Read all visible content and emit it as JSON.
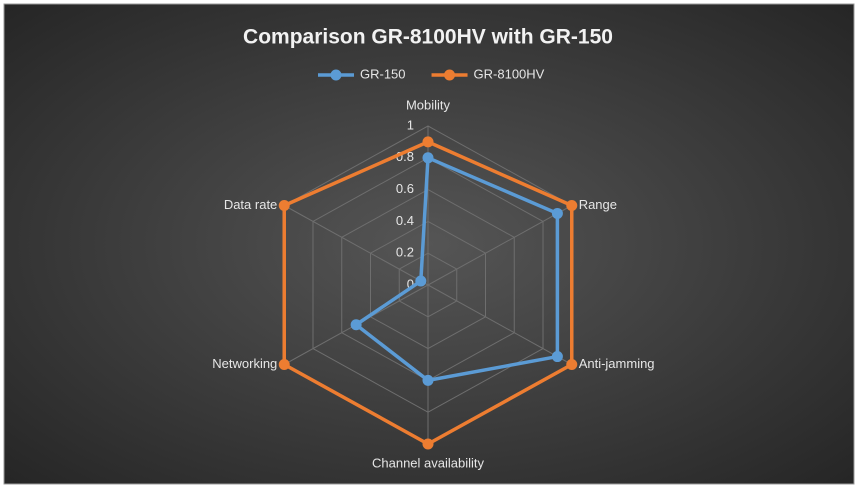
{
  "chart_data": {
    "type": "radar",
    "title": "Comparison GR-8100HV with GR-150",
    "categories": [
      "Mobility",
      "Range",
      "Anti-jamming",
      "Channel availability",
      "Networking",
      "Data rate"
    ],
    "series": [
      {
        "name": "GR-150",
        "color": "#5b9bd5",
        "values": [
          0.8,
          0.9,
          0.9,
          0.6,
          0.5,
          0.05
        ]
      },
      {
        "name": "GR-8100HV",
        "color": "#ed7d31",
        "values": [
          0.9,
          1,
          1,
          1,
          1,
          1
        ]
      }
    ],
    "rlim": [
      0,
      1
    ],
    "rticks": [
      0,
      0.2,
      0.4,
      0.6,
      0.8,
      1
    ],
    "grid": true,
    "legend": "top"
  }
}
